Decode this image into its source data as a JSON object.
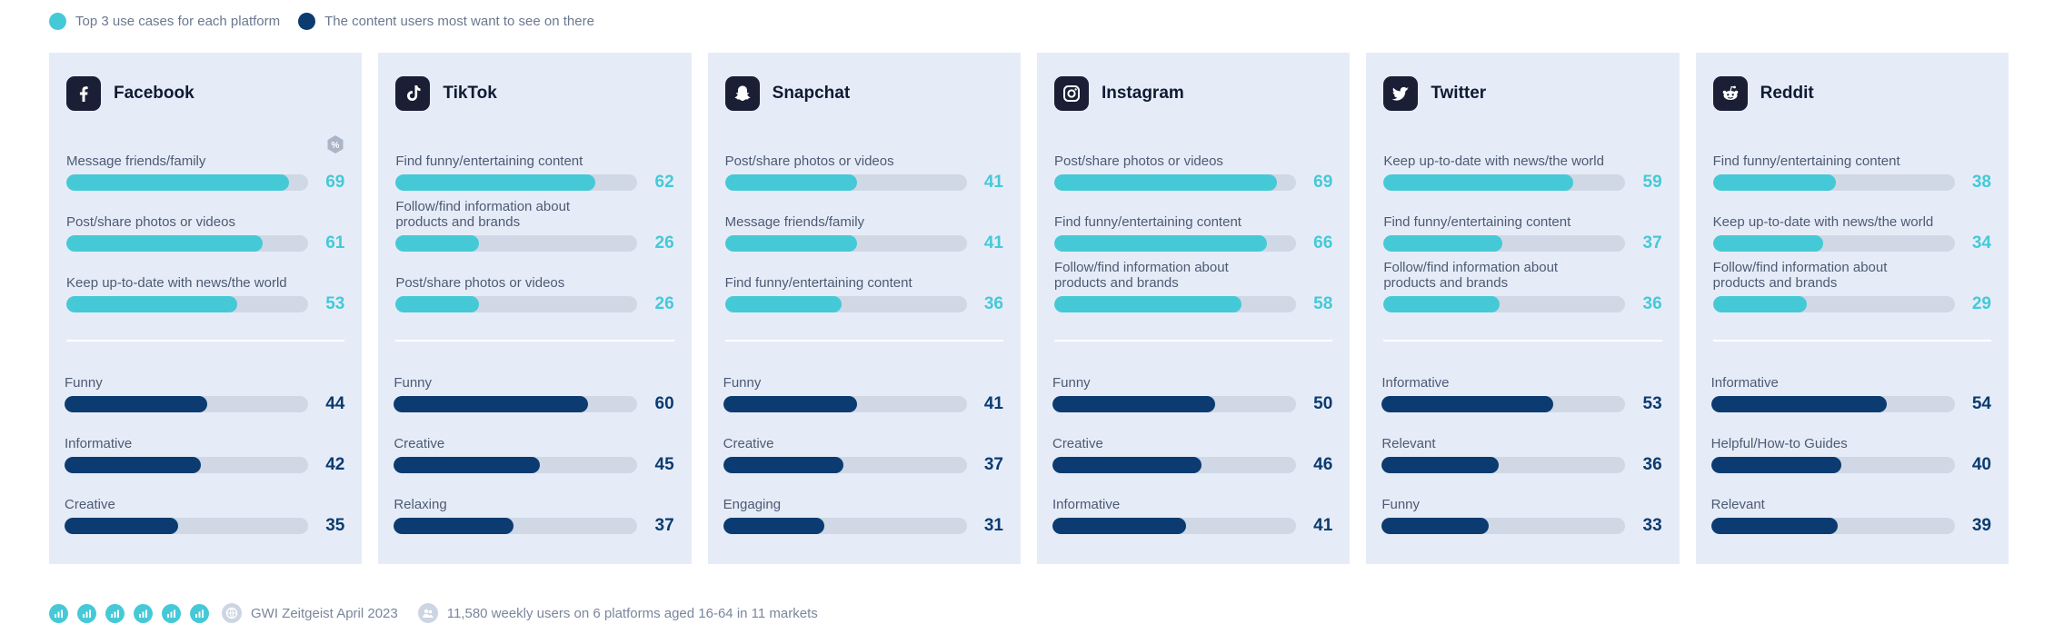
{
  "legend": {
    "top_label": "Top 3 use cases for each platform",
    "bottom_label": "The content users most want to see on there",
    "top_color": "#45c9d7",
    "bottom_color": "#0b3b70"
  },
  "footer": {
    "source": "GWI Zeitgeist April 2023",
    "sample": "11,580 weekly users on 6 platforms aged 16-64 in 11 markets",
    "market_icons": [
      "chart-icon",
      "chart-icon",
      "chart-icon",
      "chart-icon",
      "chart-icon",
      "chart-icon"
    ]
  },
  "chart_data": {
    "type": "bar",
    "unit": "%",
    "xlim": [
      0,
      75
    ],
    "panels": [
      {
        "platform": "Facebook",
        "icon": "facebook-icon",
        "top": [
          {
            "label": "Message friends/family",
            "value": 69
          },
          {
            "label": "Post/share photos or videos",
            "value": 61
          },
          {
            "label": "Keep up-to-date with news/the world",
            "value": 53
          }
        ],
        "bottom": [
          {
            "label": "Funny",
            "value": 44
          },
          {
            "label": "Informative",
            "value": 42
          },
          {
            "label": "Creative",
            "value": 35
          }
        ]
      },
      {
        "platform": "TikTok",
        "icon": "tiktok-icon",
        "top": [
          {
            "label": "Find funny/entertaining content",
            "value": 62
          },
          {
            "label": "Follow/find information about products and brands",
            "value": 26
          },
          {
            "label": "Post/share photos or videos",
            "value": 26
          }
        ],
        "bottom": [
          {
            "label": "Funny",
            "value": 60
          },
          {
            "label": "Creative",
            "value": 45
          },
          {
            "label": "Relaxing",
            "value": 37
          }
        ]
      },
      {
        "platform": "Snapchat",
        "icon": "snapchat-icon",
        "top": [
          {
            "label": "Post/share photos or videos",
            "value": 41
          },
          {
            "label": "Message friends/family",
            "value": 41
          },
          {
            "label": "Find funny/entertaining content",
            "value": 36
          }
        ],
        "bottom": [
          {
            "label": "Funny",
            "value": 41
          },
          {
            "label": "Creative",
            "value": 37
          },
          {
            "label": "Engaging",
            "value": 31
          }
        ]
      },
      {
        "platform": "Instagram",
        "icon": "instagram-icon",
        "top": [
          {
            "label": "Post/share photos or videos",
            "value": 69
          },
          {
            "label": "Find funny/entertaining content",
            "value": 66
          },
          {
            "label": "Follow/find information about products and brands",
            "value": 58
          }
        ],
        "bottom": [
          {
            "label": "Funny",
            "value": 50
          },
          {
            "label": "Creative",
            "value": 46
          },
          {
            "label": "Informative",
            "value": 41
          }
        ]
      },
      {
        "platform": "Twitter",
        "icon": "twitter-icon",
        "top": [
          {
            "label": "Keep up-to-date with news/the world",
            "value": 59
          },
          {
            "label": "Find funny/entertaining content",
            "value": 37
          },
          {
            "label": "Follow/find information about products and brands",
            "value": 36
          }
        ],
        "bottom": [
          {
            "label": "Informative",
            "value": 53
          },
          {
            "label": "Relevant",
            "value": 36
          },
          {
            "label": "Funny",
            "value": 33
          }
        ]
      },
      {
        "platform": "Reddit",
        "icon": "reddit-icon",
        "top": [
          {
            "label": "Find funny/entertaining content",
            "value": 38
          },
          {
            "label": "Keep up-to-date with news/the world",
            "value": 34
          },
          {
            "label": "Follow/find information about products and brands",
            "value": 29
          }
        ],
        "bottom": [
          {
            "label": "Informative",
            "value": 54
          },
          {
            "label": "Helpful/How-to Guides",
            "value": 40
          },
          {
            "label": "Relevant",
            "value": 39
          }
        ]
      }
    ]
  }
}
